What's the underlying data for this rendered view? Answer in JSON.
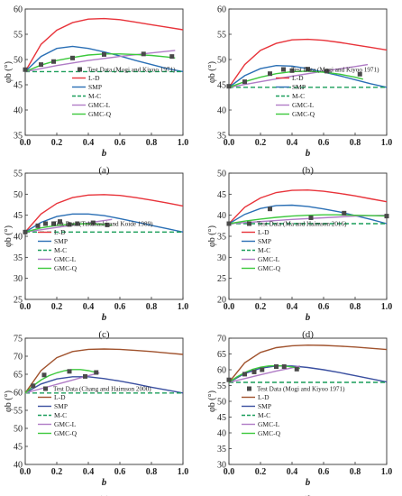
{
  "legend_labels": [
    "L-D",
    "SMP",
    "M-C",
    "GMC-L",
    "GMC-Q"
  ],
  "colors": {
    "L-D": "#e8333a",
    "L-D-brown": "#a0522d",
    "SMP": "#2a6fb5",
    "SMP-navy": "#3a4fa0",
    "M-C": "#1a9e5a",
    "GMC-L": "#b07cc6",
    "GMC-Q": "#3cc83c",
    "test": "#4a4a4a"
  },
  "chart_data": [
    {
      "type": "line",
      "panel_label": "(a)",
      "xlabel": "b",
      "ylabel": "φb (°)",
      "xlim": [
        0.0,
        1.0
      ],
      "ylim": [
        35,
        60
      ],
      "xticks": [
        "0.0",
        "0.2",
        "0.4",
        "0.6",
        "0.8",
        "1.0"
      ],
      "yticks": [
        "35",
        "40",
        "45",
        "50",
        "55",
        "60"
      ],
      "legend_position": "bottom-right",
      "test_label": "Test Data (Mogi and Kiyoo 1971)",
      "test_points": [
        [
          0,
          48.0
        ],
        [
          0.1,
          49.0
        ],
        [
          0.18,
          49.6
        ],
        [
          0.3,
          50.3
        ],
        [
          0.5,
          51.0
        ],
        [
          0.75,
          51.1
        ],
        [
          0.93,
          50.6
        ]
      ],
      "series": [
        {
          "name": "L-D",
          "color_key": "L-D",
          "x": [
            0,
            0.1,
            0.2,
            0.3,
            0.4,
            0.5,
            0.6,
            0.7,
            0.8,
            0.9,
            1.0
          ],
          "y": [
            47.6,
            53.0,
            55.8,
            57.3,
            58.0,
            58.1,
            57.9,
            57.4,
            56.9,
            56.4,
            55.9
          ]
        },
        {
          "name": "SMP",
          "color_key": "SMP",
          "x": [
            0,
            0.1,
            0.2,
            0.3,
            0.4,
            0.5,
            0.6,
            0.7,
            0.8,
            0.9,
            1.0
          ],
          "y": [
            47.6,
            50.6,
            52.2,
            52.6,
            52.2,
            51.5,
            50.7,
            49.8,
            49.0,
            48.2,
            47.6
          ]
        },
        {
          "name": "M-C",
          "color_key": "M-C",
          "dashed": true,
          "x": [
            0,
            1.0
          ],
          "y": [
            47.6,
            47.6
          ]
        },
        {
          "name": "GMC-L",
          "color_key": "GMC-L",
          "x": [
            0,
            0.2,
            0.4,
            0.6,
            0.8,
            0.95
          ],
          "y": [
            47.6,
            48.8,
            49.8,
            50.6,
            51.3,
            51.8
          ]
        },
        {
          "name": "GMC-Q",
          "color_key": "GMC-Q",
          "x": [
            0,
            0.1,
            0.2,
            0.3,
            0.4,
            0.5,
            0.6,
            0.7,
            0.8,
            0.9,
            0.95
          ],
          "y": [
            47.6,
            48.9,
            49.8,
            50.4,
            50.9,
            51.1,
            51.1,
            51.0,
            50.8,
            50.5,
            50.3
          ]
        }
      ]
    },
    {
      "type": "line",
      "panel_label": "(b)",
      "xlabel": "b",
      "ylabel": "φb (°)",
      "xlim": [
        0.0,
        1.0
      ],
      "ylim": [
        35,
        60
      ],
      "xticks": [
        "0.0",
        "0.2",
        "0.4",
        "0.6",
        "0.8",
        "1.0"
      ],
      "yticks": [
        "35",
        "40",
        "45",
        "50",
        "55",
        "60"
      ],
      "legend_position": "bottom-right",
      "test_label": "Test Data (Mogi and Kiyoo 1971)",
      "test_points": [
        [
          0,
          44.7
        ],
        [
          0.1,
          45.6
        ],
        [
          0.26,
          47.2
        ],
        [
          0.4,
          47.8
        ],
        [
          0.5,
          48.1
        ],
        [
          0.62,
          47.7
        ],
        [
          0.83,
          47.1
        ]
      ],
      "series": [
        {
          "name": "L-D",
          "color_key": "L-D",
          "x": [
            0,
            0.1,
            0.2,
            0.3,
            0.4,
            0.5,
            0.6,
            0.7,
            0.8,
            0.9,
            1.0
          ],
          "y": [
            44.5,
            49.0,
            51.8,
            53.2,
            53.9,
            54.0,
            53.8,
            53.4,
            52.9,
            52.4,
            51.9
          ]
        },
        {
          "name": "SMP",
          "color_key": "SMP",
          "x": [
            0,
            0.1,
            0.2,
            0.3,
            0.4,
            0.5,
            0.6,
            0.7,
            0.8,
            0.9,
            1.0
          ],
          "y": [
            44.5,
            46.8,
            48.2,
            48.8,
            48.7,
            48.2,
            47.5,
            46.8,
            46.0,
            45.2,
            44.5
          ]
        },
        {
          "name": "M-C",
          "color_key": "M-C",
          "dashed": true,
          "x": [
            0,
            1.0
          ],
          "y": [
            44.5,
            44.5
          ]
        },
        {
          "name": "GMC-L",
          "color_key": "GMC-L",
          "x": [
            0,
            0.2,
            0.4,
            0.6,
            0.8,
            0.88
          ],
          "y": [
            44.5,
            45.6,
            46.7,
            47.7,
            48.6,
            49.0
          ]
        },
        {
          "name": "GMC-Q",
          "color_key": "GMC-Q",
          "x": [
            0,
            0.1,
            0.2,
            0.3,
            0.4,
            0.5,
            0.6,
            0.7,
            0.8,
            0.85
          ],
          "y": [
            44.5,
            45.6,
            46.5,
            47.2,
            47.6,
            47.7,
            47.5,
            47.1,
            46.5,
            46.1
          ]
        }
      ]
    },
    {
      "type": "line",
      "panel_label": "(c)",
      "xlabel": "b",
      "ylabel": "φb (°)",
      "xlim": [
        0.0,
        1.0
      ],
      "ylim": [
        25,
        55
      ],
      "xticks": [
        "0.0",
        "0.2",
        "0.4",
        "0.6",
        "0.8",
        "1.0"
      ],
      "yticks": [
        "25",
        "30",
        "35",
        "40",
        "45",
        "50",
        "55"
      ],
      "legend_position": "bottom-left",
      "test_label": "Test Data (Takahashi and Koide 1989)",
      "test_points": [
        [
          0,
          41.0
        ],
        [
          0.08,
          42.5
        ],
        [
          0.18,
          43.0
        ],
        [
          0.22,
          43.5
        ],
        [
          0.28,
          42.8
        ],
        [
          0.33,
          43.0
        ],
        [
          0.43,
          43.2
        ],
        [
          0.52,
          42.7
        ]
      ],
      "series": [
        {
          "name": "L-D",
          "color_key": "L-D",
          "x": [
            0,
            0.1,
            0.2,
            0.3,
            0.4,
            0.5,
            0.6,
            0.7,
            0.8,
            0.9,
            1.0
          ],
          "y": [
            41.0,
            45.3,
            47.8,
            49.2,
            49.8,
            49.9,
            49.7,
            49.2,
            48.6,
            47.9,
            47.2
          ]
        },
        {
          "name": "SMP",
          "color_key": "SMP",
          "x": [
            0,
            0.1,
            0.2,
            0.3,
            0.4,
            0.5,
            0.6,
            0.7,
            0.8,
            0.9,
            1.0
          ],
          "y": [
            41.0,
            43.3,
            44.7,
            45.3,
            45.3,
            44.9,
            44.2,
            43.4,
            42.6,
            41.8,
            41.0
          ]
        },
        {
          "name": "M-C",
          "color_key": "M-C",
          "dashed": true,
          "x": [
            0,
            1.0
          ],
          "y": [
            41.0,
            41.0
          ]
        },
        {
          "name": "GMC-L",
          "color_key": "GMC-L",
          "x": [
            0,
            0.2,
            0.4,
            0.55
          ],
          "y": [
            41.0,
            42.1,
            43.2,
            44.0
          ]
        },
        {
          "name": "GMC-Q",
          "color_key": "GMC-Q",
          "x": [
            0,
            0.1,
            0.2,
            0.3,
            0.4,
            0.5,
            0.55
          ],
          "y": [
            41.0,
            42.0,
            42.6,
            42.9,
            43.0,
            42.8,
            42.6
          ]
        }
      ]
    },
    {
      "type": "line",
      "panel_label": "(d)",
      "xlabel": "b",
      "ylabel": "φb (°)",
      "xlim": [
        0.0,
        1.0
      ],
      "ylim": [
        20,
        50
      ],
      "xticks": [
        "0.0",
        "0.2",
        "0.4",
        "0.6",
        "0.8",
        "1.0"
      ],
      "yticks": [
        "20",
        "25",
        "30",
        "35",
        "40",
        "45",
        "50"
      ],
      "legend_position": "bottom-left",
      "test_label": "Test Data (Ma and Haimson 2016)",
      "test_points": [
        [
          0,
          38.0
        ],
        [
          0.26,
          41.5
        ],
        [
          0.52,
          39.4
        ],
        [
          0.73,
          40.5
        ],
        [
          1.0,
          39.8
        ]
      ],
      "series": [
        {
          "name": "L-D",
          "color_key": "L-D",
          "x": [
            0,
            0.1,
            0.2,
            0.3,
            0.4,
            0.5,
            0.6,
            0.7,
            0.8,
            0.9,
            1.0
          ],
          "y": [
            38.0,
            41.9,
            44.1,
            45.4,
            45.9,
            46.0,
            45.7,
            45.2,
            44.6,
            43.9,
            43.2
          ]
        },
        {
          "name": "SMP",
          "color_key": "SMP",
          "x": [
            0,
            0.1,
            0.2,
            0.3,
            0.4,
            0.5,
            0.6,
            0.7,
            0.8,
            0.9,
            1.0
          ],
          "y": [
            38.0,
            40.2,
            41.6,
            42.3,
            42.4,
            42.1,
            41.5,
            40.8,
            39.9,
            39.0,
            38.0
          ]
        },
        {
          "name": "M-C",
          "color_key": "M-C",
          "dashed": true,
          "x": [
            0,
            1.0
          ],
          "y": [
            38.0,
            38.0
          ]
        },
        {
          "name": "GMC-L",
          "color_key": "GMC-L",
          "x": [
            0,
            0.2,
            0.4,
            0.6,
            0.8,
            1.0
          ],
          "y": [
            38.0,
            38.5,
            39.0,
            39.4,
            39.8,
            40.0
          ]
        },
        {
          "name": "GMC-Q",
          "color_key": "GMC-Q",
          "x": [
            0,
            0.1,
            0.2,
            0.3,
            0.4,
            0.5,
            0.6,
            0.7,
            0.8,
            0.9,
            1.0
          ],
          "y": [
            38.0,
            38.6,
            39.1,
            39.5,
            39.8,
            40.0,
            40.1,
            40.1,
            40.0,
            39.9,
            39.8
          ]
        }
      ]
    },
    {
      "type": "line",
      "panel_label": "(e)",
      "xlabel": "b",
      "ylabel": "φb (°)",
      "xlim": [
        0.0,
        1.0
      ],
      "ylim": [
        40,
        75
      ],
      "xticks": [
        "0.0",
        "0.2",
        "0.4",
        "0.6",
        "0.8",
        "1.0"
      ],
      "yticks": [
        "40",
        "45",
        "50",
        "55",
        "60",
        "65",
        "70",
        "75"
      ],
      "legend_position": "bottom-left",
      "test_label": "Test Data (Chang and Haimson 2000)",
      "test_points": [
        [
          0.05,
          61.8
        ],
        [
          0.12,
          64.8
        ],
        [
          0.28,
          65.8
        ],
        [
          0.38,
          64.4
        ],
        [
          0.45,
          65.5
        ]
      ],
      "series": [
        {
          "name": "L-D",
          "color_key": "L-D-brown",
          "x": [
            0,
            0.1,
            0.2,
            0.3,
            0.4,
            0.5,
            0.6,
            0.7,
            0.8,
            0.9,
            1.0
          ],
          "y": [
            59.8,
            66.0,
            69.6,
            71.3,
            71.9,
            72.0,
            71.9,
            71.6,
            71.3,
            70.9,
            70.5
          ]
        },
        {
          "name": "SMP",
          "color_key": "SMP-navy",
          "x": [
            0,
            0.1,
            0.2,
            0.3,
            0.4,
            0.5,
            0.6,
            0.7,
            0.8,
            0.9,
            1.0
          ],
          "y": [
            59.8,
            62.3,
            63.7,
            64.3,
            64.3,
            63.8,
            63.1,
            62.3,
            61.4,
            60.6,
            59.8
          ]
        },
        {
          "name": "M-C",
          "color_key": "M-C",
          "dashed": true,
          "x": [
            0,
            1.0
          ],
          "y": [
            59.8,
            59.8
          ]
        },
        {
          "name": "GMC-L",
          "color_key": "GMC-L",
          "x": [
            0,
            0.1,
            0.2,
            0.3,
            0.4,
            0.47
          ],
          "y": [
            59.8,
            61.0,
            62.2,
            63.4,
            64.6,
            65.4
          ]
        },
        {
          "name": "GMC-Q",
          "color_key": "GMC-Q",
          "x": [
            0,
            0.05,
            0.1,
            0.15,
            0.2,
            0.25,
            0.3,
            0.35,
            0.4,
            0.45
          ],
          "y": [
            59.8,
            61.8,
            63.4,
            64.6,
            65.4,
            66.0,
            66.3,
            66.3,
            66.0,
            65.5
          ]
        }
      ]
    },
    {
      "type": "line",
      "panel_label": "(f)",
      "xlabel": "b",
      "ylabel": "φb (°)",
      "xlim": [
        0.0,
        1.0
      ],
      "ylim": [
        30,
        70
      ],
      "xticks": [
        "0.0",
        "0.2",
        "0.4",
        "0.6",
        "0.8",
        "1.0"
      ],
      "yticks": [
        "30",
        "35",
        "40",
        "45",
        "50",
        "55",
        "60",
        "65",
        "70"
      ],
      "legend_position": "bottom-left",
      "test_label": "Test Data (Mogi and Kiyoo 1971)",
      "test_points": [
        [
          0,
          56.8
        ],
        [
          0.1,
          58.6
        ],
        [
          0.16,
          59.3
        ],
        [
          0.21,
          60.0
        ],
        [
          0.3,
          61.0
        ],
        [
          0.35,
          61.0
        ],
        [
          0.43,
          60.2
        ]
      ],
      "series": [
        {
          "name": "L-D",
          "color_key": "L-D-brown",
          "x": [
            0,
            0.1,
            0.2,
            0.3,
            0.4,
            0.5,
            0.6,
            0.7,
            0.8,
            0.9,
            1.0
          ],
          "y": [
            56.0,
            62.2,
            65.5,
            67.0,
            67.6,
            67.8,
            67.7,
            67.5,
            67.2,
            66.8,
            66.4
          ]
        },
        {
          "name": "SMP",
          "color_key": "SMP-navy",
          "x": [
            0,
            0.1,
            0.2,
            0.3,
            0.4,
            0.5,
            0.6,
            0.7,
            0.8,
            0.9,
            1.0
          ],
          "y": [
            56.0,
            58.8,
            60.5,
            61.2,
            61.2,
            60.7,
            60.0,
            59.1,
            58.1,
            57.1,
            56.1
          ]
        },
        {
          "name": "M-C",
          "color_key": "M-C",
          "dashed": true,
          "x": [
            0,
            1.0
          ],
          "y": [
            56.0,
            56.0
          ]
        },
        {
          "name": "GMC-L",
          "color_key": "GMC-L",
          "x": [
            0,
            0.1,
            0.2,
            0.3,
            0.4,
            0.45
          ],
          "y": [
            56.0,
            57.2,
            58.4,
            59.6,
            60.6,
            61.2
          ]
        },
        {
          "name": "GMC-Q",
          "color_key": "GMC-Q",
          "x": [
            0,
            0.05,
            0.1,
            0.15,
            0.2,
            0.25,
            0.3,
            0.35,
            0.4,
            0.45
          ],
          "y": [
            56.0,
            57.7,
            59.1,
            60.1,
            60.8,
            61.2,
            61.3,
            61.2,
            60.9,
            60.4
          ]
        }
      ]
    }
  ]
}
